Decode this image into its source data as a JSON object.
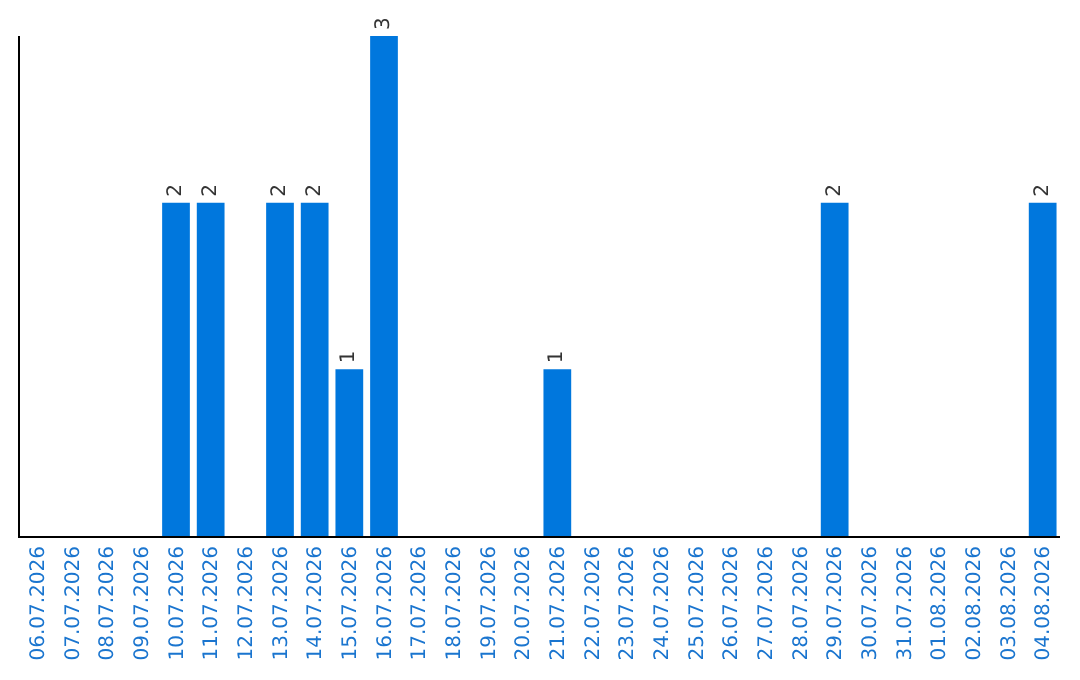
{
  "chart_data": {
    "type": "bar",
    "categories": [
      "06.07.2026",
      "07.07.2026",
      "08.07.2026",
      "09.07.2026",
      "10.07.2026",
      "11.07.2026",
      "12.07.2026",
      "13.07.2026",
      "14.07.2026",
      "15.07.2026",
      "16.07.2026",
      "17.07.2026",
      "18.07.2026",
      "19.07.2026",
      "20.07.2026",
      "21.07.2026",
      "22.07.2026",
      "23.07.2026",
      "24.07.2026",
      "25.07.2026",
      "26.07.2026",
      "27.07.2026",
      "28.07.2026",
      "29.07.2026",
      "30.07.2026",
      "31.07.2026",
      "01.08.2026",
      "02.08.2026",
      "03.08.2026",
      "04.08.2026"
    ],
    "values": [
      0,
      0,
      0,
      0,
      2,
      2,
      0,
      2,
      2,
      1,
      3,
      0,
      0,
      0,
      0,
      1,
      0,
      0,
      0,
      0,
      0,
      0,
      0,
      2,
      0,
      0,
      0,
      0,
      0,
      2
    ],
    "value_labels": [
      null,
      null,
      null,
      null,
      "2",
      "2",
      null,
      "2",
      "2",
      "1",
      "3",
      null,
      null,
      null,
      null,
      "1",
      null,
      null,
      null,
      null,
      null,
      null,
      null,
      "2",
      null,
      null,
      null,
      null,
      null,
      "2"
    ],
    "color": "#0077dd",
    "legend": false,
    "tick_labels": "x"
  }
}
